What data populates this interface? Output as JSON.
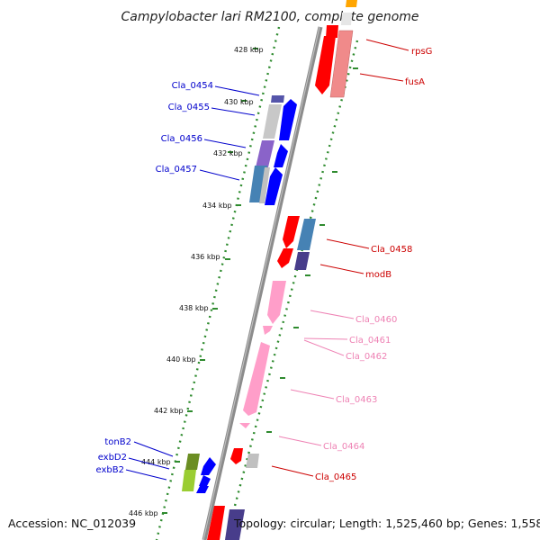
{
  "title": "Campylobacter lari RM2100, complete genome",
  "footer": {
    "accession": "Accession: NC_012039",
    "topology": "Topology: circular; Length: 1,525,460 bp; Genes: 1,558"
  },
  "colors": {
    "backbone": "#8c8c8c",
    "tick_dots": "#2e8b2e",
    "blue_label": "#0000cc",
    "red_label": "#cc0000",
    "pink_label": "#ee82b4"
  },
  "ticks": [
    "428 kbp",
    "430 kbp",
    "432 kbp",
    "434 kbp",
    "436 kbp",
    "438 kbp",
    "440 kbp",
    "442 kbp",
    "444 kbp",
    "446 kbp"
  ],
  "left_labels": [
    {
      "text": "Cla_0454"
    },
    {
      "text": "Cla_0455"
    },
    {
      "text": "Cla_0456"
    },
    {
      "text": "Cla_0457"
    },
    {
      "text": "tonB2"
    },
    {
      "text": "exbD2"
    },
    {
      "text": "exbB2"
    }
  ],
  "right_labels": [
    {
      "text": "rpsG",
      "color": "red"
    },
    {
      "text": "fusA",
      "color": "red"
    },
    {
      "text": "Cla_0458",
      "color": "red"
    },
    {
      "text": "modB",
      "color": "red"
    },
    {
      "text": "Cla_0460",
      "color": "pink"
    },
    {
      "text": "Cla_0461",
      "color": "pink"
    },
    {
      "text": "Cla_0462",
      "color": "pink"
    },
    {
      "text": "Cla_0463",
      "color": "pink"
    },
    {
      "text": "Cla_0464",
      "color": "pink"
    },
    {
      "text": "Cla_0465",
      "color": "red"
    }
  ]
}
